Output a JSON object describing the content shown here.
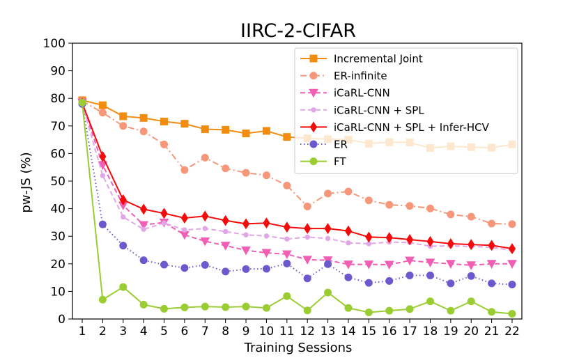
{
  "chart_data": {
    "type": "line",
    "title": "IIRC-2-CIFAR",
    "xlabel": "Training Sessions",
    "ylabel": "pw-JS (%)",
    "ylim": [
      0,
      100
    ],
    "yticks": [
      0,
      10,
      20,
      30,
      40,
      50,
      60,
      70,
      80,
      90,
      100
    ],
    "x": [
      1,
      2,
      3,
      4,
      5,
      6,
      7,
      8,
      9,
      10,
      11,
      12,
      13,
      14,
      15,
      16,
      17,
      18,
      19,
      20,
      21,
      22
    ],
    "legend_position": "top-right",
    "series": [
      {
        "name": "Incremental Joint",
        "color": "#f28c0f",
        "marker": "square",
        "dash": "solid",
        "values": [
          79.3,
          77.5,
          73.5,
          72.9,
          71.6,
          70.8,
          68.8,
          68.6,
          67.3,
          68.2,
          66.0,
          65.5,
          65.2,
          65.0,
          63.6,
          64.1,
          64.0,
          62.0,
          62.6,
          62.3,
          62.1,
          63.3
        ]
      },
      {
        "name": "ER-infinite",
        "color": "#f7977a",
        "marker": "circle",
        "dash": "dashdot",
        "values": [
          79.0,
          74.8,
          70.0,
          68.0,
          63.3,
          54.0,
          58.5,
          54.6,
          53.0,
          52.1,
          48.4,
          40.8,
          45.5,
          46.2,
          43.0,
          41.4,
          41.0,
          40.1,
          37.9,
          37.1,
          34.6,
          34.4
        ]
      },
      {
        "name": "iCaRL-CNN",
        "color": "#f05fb4",
        "marker": "triangle-down",
        "dash": "dashed",
        "values": [
          78.5,
          55.8,
          41.2,
          34.1,
          35.0,
          30.5,
          28.2,
          26.6,
          24.9,
          24.0,
          23.5,
          21.5,
          21.3,
          19.8,
          19.8,
          19.7,
          21.2,
          20.5,
          20.0,
          19.5,
          20.0,
          20.0
        ]
      },
      {
        "name": "iCaRL-CNN + SPL",
        "color": "#e0a6e6",
        "marker": "small-circle",
        "dash": "dashed",
        "values": [
          78.0,
          52.0,
          37.0,
          32.5,
          34.8,
          32.3,
          32.8,
          31.7,
          30.5,
          30.1,
          29.0,
          29.7,
          29.2,
          27.6,
          27.3,
          27.9,
          27.7,
          26.4,
          26.5,
          26.3,
          26.0,
          24.9
        ]
      },
      {
        "name": "iCaRL-CNN + SPL + Infer-HCV",
        "color": "#f50a0a",
        "marker": "diamond",
        "dash": "solid",
        "values": [
          78.3,
          58.9,
          43.2,
          39.8,
          38.3,
          36.6,
          37.3,
          35.7,
          34.5,
          34.8,
          33.3,
          32.8,
          32.8,
          31.9,
          29.7,
          29.5,
          28.8,
          28.1,
          27.3,
          27.0,
          26.7,
          25.5
        ]
      },
      {
        "name": "ER",
        "color": "#6a5acd",
        "marker": "circle",
        "dash": "dotted",
        "values": [
          78.0,
          34.3,
          26.6,
          21.3,
          19.7,
          18.5,
          19.6,
          17.2,
          18.1,
          18.2,
          20.1,
          14.7,
          19.9,
          15.1,
          13.1,
          13.8,
          15.8,
          15.8,
          12.9,
          15.6,
          12.9,
          12.5
        ]
      },
      {
        "name": "FT",
        "color": "#9acd32",
        "marker": "circle",
        "dash": "solid",
        "values": [
          78.5,
          7.0,
          11.6,
          5.2,
          3.7,
          4.2,
          4.5,
          4.3,
          4.5,
          4.0,
          8.3,
          3.1,
          9.6,
          4.0,
          2.4,
          3.0,
          3.6,
          6.4,
          3.0,
          6.4,
          2.6,
          1.9
        ]
      }
    ]
  }
}
